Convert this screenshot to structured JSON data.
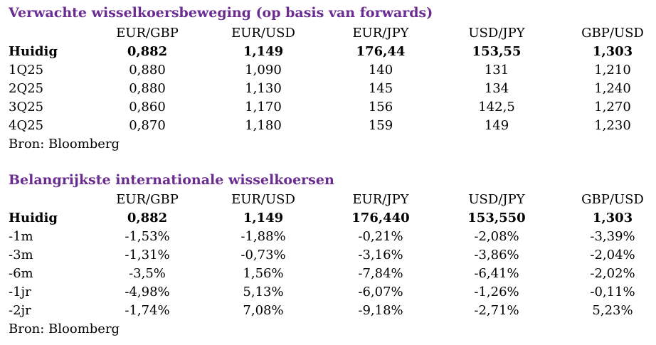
{
  "table1": {
    "title": "Verwachte wisselkoersbeweging (op basis van forwards)",
    "headers": [
      "EUR/GBP",
      "EUR/USD",
      "EUR/JPY",
      "USD/JPY",
      "GBP/USD"
    ],
    "rows": [
      {
        "label": "Huidig",
        "values": [
          "0,882",
          "1,149",
          "176,44",
          "153,55",
          "1,303"
        ]
      },
      {
        "label": "1Q25",
        "values": [
          "0,880",
          "1,090",
          "140",
          "131",
          "1,210"
        ]
      },
      {
        "label": "2Q25",
        "values": [
          "0,880",
          "1,130",
          "145",
          "134",
          "1,240"
        ]
      },
      {
        "label": "3Q25",
        "values": [
          "0,860",
          "1,170",
          "156",
          "142,5",
          "1,270"
        ]
      },
      {
        "label": "4Q25",
        "values": [
          "0,870",
          "1,180",
          "159",
          "149",
          "1,230"
        ]
      }
    ],
    "source": "Bron: Bloomberg"
  },
  "table2": {
    "title": "Belangrijkste internationale wisselkoersen",
    "headers": [
      "EUR/GBP",
      "EUR/USD",
      "EUR/JPY",
      "USD/JPY",
      "GBP/USD"
    ],
    "rows": [
      {
        "label": "Huidig",
        "values": [
          "0,882",
          "1,149",
          "176,440",
          "153,550",
          "1,303"
        ]
      },
      {
        "label": "-1m",
        "values": [
          "-1,53%",
          "-1,88%",
          "-0,21%",
          "-2,08%",
          "-3,39%"
        ]
      },
      {
        "label": "-3m",
        "values": [
          "-1,31%",
          "-0,73%",
          "-3,16%",
          "-3,86%",
          "-2,04%"
        ]
      },
      {
        "label": "-6m",
        "values": [
          "-3,5%",
          "1,56%",
          "-7,84%",
          "-6,41%",
          "-2,02%"
        ]
      },
      {
        "label": "-1jr",
        "values": [
          "-4,98%",
          "5,13%",
          "-6,07%",
          "-1,26%",
          "-0,11%"
        ]
      },
      {
        "label": "-2jr",
        "values": [
          "-1,74%",
          "7,08%",
          "-9,18%",
          "-2,71%",
          "5,23%"
        ]
      }
    ],
    "source": "Bron: Bloomberg"
  },
  "colors": {
    "title": "#6a2c91",
    "text": "#000000"
  }
}
